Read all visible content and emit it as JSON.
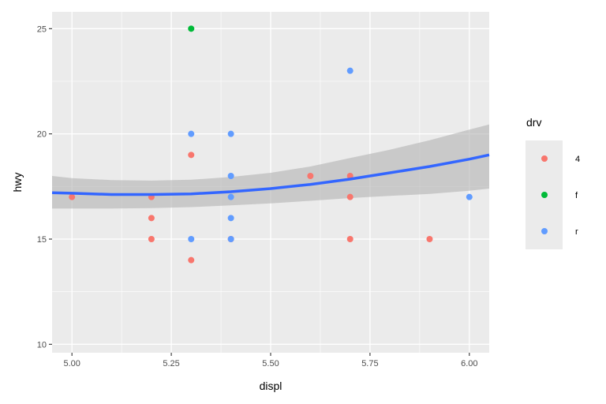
{
  "chart_data": {
    "type": "scatter",
    "xlabel": "displ",
    "ylabel": "hwy",
    "xlim": [
      4.95,
      6.05
    ],
    "ylim": [
      9.6,
      25.8
    ],
    "x_ticks": [
      5.0,
      5.25,
      5.5,
      5.75,
      6.0
    ],
    "x_tick_labels": [
      "5.00",
      "5.25",
      "5.50",
      "5.75",
      "6.00"
    ],
    "y_ticks": [
      10,
      15,
      20,
      25
    ],
    "y_tick_labels": [
      "10",
      "15",
      "20",
      "25"
    ],
    "grid": true,
    "legend": {
      "title": "drv",
      "placement": "right",
      "entries": [
        {
          "label": "4",
          "color": "#F8766D"
        },
        {
          "label": "f",
          "color": "#00BA38"
        },
        {
          "label": "r",
          "color": "#619CFF"
        }
      ]
    },
    "series": [
      {
        "name": "4",
        "color": "#F8766D",
        "points": [
          [
            5.0,
            17
          ],
          [
            5.2,
            17
          ],
          [
            5.2,
            16
          ],
          [
            5.2,
            15
          ],
          [
            5.3,
            19
          ],
          [
            5.3,
            14
          ],
          [
            5.4,
            15
          ],
          [
            5.6,
            18
          ],
          [
            5.7,
            18
          ],
          [
            5.7,
            17
          ],
          [
            5.7,
            15
          ],
          [
            5.9,
            15
          ]
        ]
      },
      {
        "name": "f",
        "color": "#00BA38",
        "points": [
          [
            5.3,
            25
          ]
        ]
      },
      {
        "name": "r",
        "color": "#619CFF",
        "points": [
          [
            5.3,
            20
          ],
          [
            5.3,
            15
          ],
          [
            5.4,
            20
          ],
          [
            5.4,
            18
          ],
          [
            5.4,
            17
          ],
          [
            5.4,
            16
          ],
          [
            5.4,
            15
          ],
          [
            5.7,
            23
          ],
          [
            6.0,
            17
          ]
        ]
      }
    ],
    "smooth": {
      "color": "#3366FF",
      "fill": "#b3b3b3",
      "x": [
        4.95,
        5.0,
        5.1,
        5.2,
        5.3,
        5.4,
        5.5,
        5.6,
        5.7,
        5.8,
        5.9,
        6.0,
        6.05
      ],
      "y": [
        17.2,
        17.18,
        17.12,
        17.12,
        17.15,
        17.25,
        17.4,
        17.6,
        17.85,
        18.15,
        18.45,
        18.8,
        19.0
      ],
      "lower": [
        16.45,
        16.45,
        16.45,
        16.47,
        16.52,
        16.6,
        16.7,
        16.82,
        16.95,
        17.05,
        17.15,
        17.3,
        17.4
      ],
      "upper": [
        18.0,
        17.9,
        17.8,
        17.78,
        17.82,
        17.95,
        18.15,
        18.45,
        18.85,
        19.25,
        19.7,
        20.2,
        20.45
      ]
    }
  }
}
